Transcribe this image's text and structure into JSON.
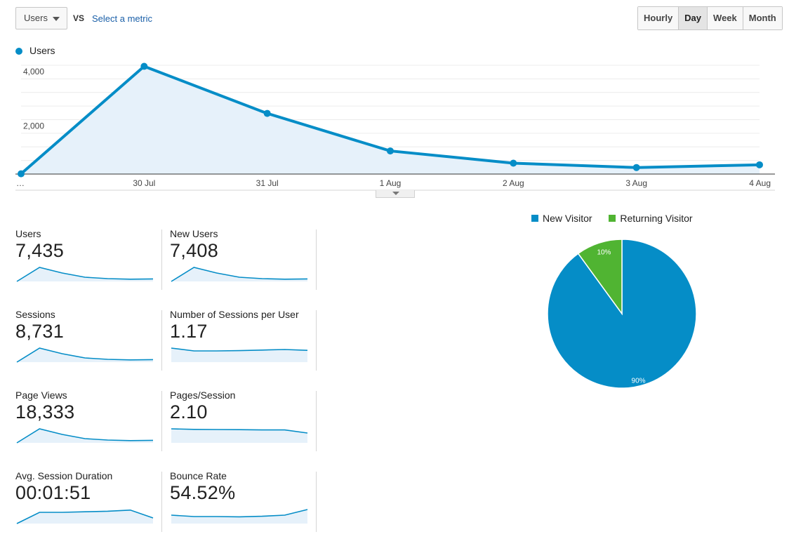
{
  "controls": {
    "metric_selected": "Users",
    "vs_label": "VS",
    "select_metric_link": "Select a metric",
    "time_buttons": [
      "Hourly",
      "Day",
      "Week",
      "Month"
    ],
    "active_time_button": "Day"
  },
  "chart_data": [
    {
      "type": "area",
      "series": [
        {
          "name": "Users",
          "color": "#058dc7",
          "values": [
            10,
            3960,
            2230,
            850,
            400,
            240,
            340
          ]
        }
      ],
      "x": [
        "…",
        "30 Jul",
        "31 Jul",
        "1 Aug",
        "2 Aug",
        "3 Aug",
        "4 Aug"
      ],
      "yticks": [
        "2,000",
        "4,000"
      ],
      "ylim": [
        0,
        4000
      ],
      "legend": "top-left",
      "grid": true
    },
    {
      "type": "pie",
      "labels": [
        "New Visitor",
        "Returning Visitor"
      ],
      "values": [
        90,
        10
      ],
      "slice_labels": [
        "90%",
        "10%"
      ],
      "colors": [
        "#058dc7",
        "#50b432"
      ],
      "legend": "top"
    }
  ],
  "metrics": [
    {
      "label": "Users",
      "value": "7,435",
      "trend": [
        0,
        10,
        6,
        3,
        2,
        1.6,
        1.8
      ]
    },
    {
      "label": "New Users",
      "value": "7,408",
      "trend": [
        0,
        10,
        6,
        3,
        2,
        1.6,
        1.8
      ]
    },
    {
      "label": "Sessions",
      "value": "8,731",
      "trend": [
        0,
        10,
        6,
        3,
        2,
        1.6,
        1.8
      ]
    },
    {
      "label": "Number of Sessions per User",
      "value": "1.17",
      "trend": [
        10,
        8,
        8,
        8.2,
        8.6,
        9,
        8.4
      ]
    },
    {
      "label": "Page Views",
      "value": "18,333",
      "trend": [
        0,
        10,
        6,
        3,
        2,
        1.6,
        1.8
      ]
    },
    {
      "label": "Pages/Session",
      "value": "2.10",
      "trend": [
        10,
        9.6,
        9.5,
        9.4,
        9.2,
        9.2,
        7
      ]
    },
    {
      "label": "Avg. Session Duration",
      "value": "00:01:51",
      "trend": [
        0,
        8,
        8,
        8.4,
        8.8,
        9.6,
        4
      ]
    },
    {
      "label": "Bounce Rate",
      "value": "54.52%",
      "trend": [
        6,
        5,
        5,
        4.8,
        5.2,
        6,
        10
      ]
    }
  ],
  "colors": {
    "accent": "#058dc7",
    "returning": "#50b432",
    "area_fill": "#e6f1fa"
  }
}
